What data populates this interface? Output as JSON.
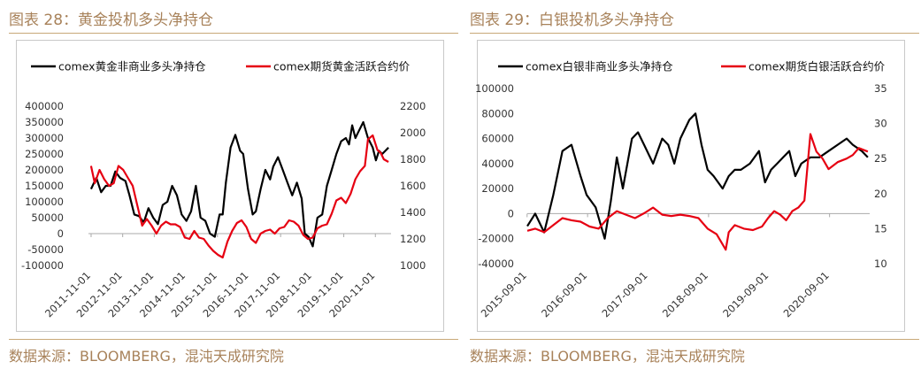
{
  "panels": [
    {
      "title": "图表 28：黄金投机多头净持仓",
      "source": "数据来源：BLOOMBERG，混沌天成研究院"
    },
    {
      "title": "图表 29：白银投机多头净持仓",
      "source": "数据来源：BLOOMBERG，混沌天成研究院"
    }
  ],
  "colors": {
    "series1": "#000000",
    "series2": "#e60012",
    "accent": "#a8825a",
    "rule": "#c8a878"
  },
  "chart_data": [
    {
      "type": "line",
      "title": "",
      "legend": [
        "comex黄金非商业多头净持仓",
        "comex期货黄金活跃合约价"
      ],
      "legend_position": "top",
      "grid": false,
      "xlabel": "",
      "ylabel": "",
      "x_ticks": [
        "2011-11-01",
        "2012-11-01",
        "2013-11-01",
        "2014-11-01",
        "2015-11-01",
        "2016-11-01",
        "2017-11-01",
        "2018-11-01",
        "2019-11-01",
        "2020-11-01"
      ],
      "y_left_ticks": [
        "400000",
        "350000",
        "300000",
        "250000",
        "200000",
        "150000",
        "100000",
        "50000",
        "0",
        "-50000",
        "-100000"
      ],
      "y_right_ticks": [
        "2200",
        "2000",
        "1800",
        "1600",
        "1400",
        "1200",
        "1000"
      ],
      "ylim_left": [
        -100000,
        400000
      ],
      "ylim_right": [
        1000,
        2200
      ],
      "xlim": [
        2011.75,
        2021.33
      ],
      "series": [
        {
          "name": "comex黄金非商业多头净持仓",
          "axis": "left",
          "color": "#000000",
          "x": [
            2011.83,
            2012.0,
            2012.15,
            2012.3,
            2012.45,
            2012.6,
            2012.75,
            2012.92,
            2013.05,
            2013.2,
            2013.35,
            2013.5,
            2013.65,
            2013.8,
            2013.95,
            2014.1,
            2014.25,
            2014.4,
            2014.55,
            2014.7,
            2014.85,
            2015.0,
            2015.15,
            2015.3,
            2015.45,
            2015.6,
            2015.75,
            2015.9,
            2016.0,
            2016.1,
            2016.25,
            2016.4,
            2016.55,
            2016.65,
            2016.8,
            2016.95,
            2017.05,
            2017.2,
            2017.35,
            2017.5,
            2017.6,
            2017.75,
            2017.9,
            2018.05,
            2018.2,
            2018.35,
            2018.5,
            2018.6,
            2018.72,
            2018.85,
            2019.0,
            2019.15,
            2019.3,
            2019.45,
            2019.6,
            2019.75,
            2019.9,
            2020.0,
            2020.1,
            2020.2,
            2020.3,
            2020.45,
            2020.6,
            2020.75,
            2020.85,
            2020.95,
            2021.05,
            2021.15,
            2021.25
          ],
          "y": [
            140000,
            175000,
            130000,
            150000,
            150000,
            195000,
            175000,
            165000,
            120000,
            60000,
            55000,
            35000,
            80000,
            50000,
            30000,
            90000,
            100000,
            150000,
            120000,
            60000,
            40000,
            70000,
            150000,
            50000,
            40000,
            0,
            -10000,
            60000,
            60000,
            160000,
            270000,
            310000,
            260000,
            250000,
            140000,
            60000,
            70000,
            140000,
            200000,
            170000,
            210000,
            240000,
            200000,
            160000,
            120000,
            160000,
            110000,
            0,
            -10000,
            -40000,
            50000,
            60000,
            150000,
            200000,
            250000,
            290000,
            300000,
            280000,
            340000,
            300000,
            320000,
            350000,
            300000,
            270000,
            230000,
            260000,
            250000,
            260000,
            270000
          ]
        },
        {
          "name": "comex期货黄金活跃合约价",
          "axis": "right",
          "color": "#e60012",
          "x": [
            2011.83,
            2011.95,
            2012.1,
            2012.25,
            2012.4,
            2012.55,
            2012.7,
            2012.85,
            2013.0,
            2013.15,
            2013.3,
            2013.45,
            2013.6,
            2013.75,
            2013.9,
            2014.05,
            2014.2,
            2014.35,
            2014.5,
            2014.65,
            2014.8,
            2014.95,
            2015.1,
            2015.25,
            2015.4,
            2015.55,
            2015.7,
            2015.85,
            2016.0,
            2016.15,
            2016.3,
            2016.45,
            2016.6,
            2016.75,
            2016.9,
            2017.05,
            2017.2,
            2017.35,
            2017.5,
            2017.65,
            2017.8,
            2017.95,
            2018.1,
            2018.25,
            2018.4,
            2018.55,
            2018.7,
            2018.85,
            2019.0,
            2019.15,
            2019.3,
            2019.45,
            2019.6,
            2019.75,
            2019.9,
            2020.05,
            2020.2,
            2020.35,
            2020.5,
            2020.6,
            2020.75,
            2020.9,
            2021.0,
            2021.1,
            2021.25
          ],
          "y": [
            1750,
            1620,
            1720,
            1650,
            1600,
            1620,
            1750,
            1720,
            1660,
            1600,
            1450,
            1300,
            1350,
            1300,
            1240,
            1300,
            1330,
            1310,
            1310,
            1290,
            1210,
            1200,
            1260,
            1210,
            1200,
            1150,
            1110,
            1080,
            1060,
            1180,
            1260,
            1320,
            1340,
            1290,
            1200,
            1170,
            1240,
            1260,
            1270,
            1240,
            1280,
            1290,
            1340,
            1330,
            1300,
            1230,
            1200,
            1210,
            1280,
            1300,
            1310,
            1390,
            1490,
            1510,
            1470,
            1540,
            1650,
            1710,
            1750,
            1950,
            1980,
            1870,
            1850,
            1800,
            1780
          ]
        }
      ]
    },
    {
      "type": "line",
      "title": "",
      "legend": [
        "comex白银非商业多头净持仓",
        "comex期货白银活跃合约价"
      ],
      "legend_position": "top",
      "grid": false,
      "xlabel": "",
      "ylabel": "",
      "x_ticks": [
        "2015-09-01",
        "2016-09-01",
        "2017-09-01",
        "2018-09-01",
        "2019-09-01",
        "2020-09-01"
      ],
      "y_left_ticks": [
        "100000",
        "80000",
        "60000",
        "40000",
        "20000",
        "0",
        "-20000",
        "-40000"
      ],
      "y_right_ticks": [
        "35",
        "30",
        "25",
        "20",
        "15",
        "10"
      ],
      "ylim_left": [
        -40000,
        100000
      ],
      "ylim_right": [
        10,
        35
      ],
      "xlim": [
        2015.67,
        2021.33
      ],
      "series": [
        {
          "name": "comex白银非商业多头净持仓",
          "axis": "left",
          "color": "#000000",
          "x": [
            2015.67,
            2015.8,
            2015.95,
            2016.1,
            2016.25,
            2016.4,
            2016.55,
            2016.65,
            2016.8,
            2016.95,
            2017.05,
            2017.15,
            2017.25,
            2017.4,
            2017.5,
            2017.6,
            2017.75,
            2017.9,
            2018.0,
            2018.1,
            2018.2,
            2018.35,
            2018.45,
            2018.55,
            2018.65,
            2018.75,
            2018.9,
            2019.0,
            2019.1,
            2019.2,
            2019.35,
            2019.5,
            2019.6,
            2019.7,
            2019.8,
            2019.9,
            2020.0,
            2020.1,
            2020.2,
            2020.35,
            2020.5,
            2020.65,
            2020.8,
            2020.95,
            2021.05,
            2021.2,
            2021.3
          ],
          "y": [
            -10000,
            0,
            -15000,
            15000,
            50000,
            55000,
            30000,
            15000,
            5000,
            -20000,
            10000,
            45000,
            20000,
            60000,
            65000,
            55000,
            40000,
            60000,
            55000,
            40000,
            60000,
            75000,
            80000,
            55000,
            35000,
            30000,
            20000,
            30000,
            35000,
            35000,
            40000,
            50000,
            25000,
            35000,
            40000,
            45000,
            50000,
            30000,
            40000,
            45000,
            45000,
            50000,
            55000,
            60000,
            55000,
            50000,
            45000
          ]
        },
        {
          "name": "comex期货白银活跃合约价",
          "axis": "right",
          "color": "#e60012",
          "x": [
            2015.67,
            2015.8,
            2015.95,
            2016.1,
            2016.25,
            2016.4,
            2016.55,
            2016.7,
            2016.85,
            2017.0,
            2017.15,
            2017.3,
            2017.45,
            2017.6,
            2017.75,
            2017.9,
            2018.05,
            2018.2,
            2018.35,
            2018.5,
            2018.65,
            2018.8,
            2018.95,
            2019.0,
            2019.1,
            2019.25,
            2019.4,
            2019.55,
            2019.65,
            2019.75,
            2019.85,
            2019.95,
            2020.05,
            2020.15,
            2020.25,
            2020.35,
            2020.45,
            2020.55,
            2020.65,
            2020.8,
            2020.95,
            2021.05,
            2021.15,
            2021.3
          ],
          "y": [
            14.7,
            15.0,
            14.5,
            15.5,
            16.5,
            16.2,
            16.0,
            15.3,
            15.0,
            16.5,
            17.5,
            17.0,
            16.5,
            17.2,
            18.0,
            17.0,
            16.8,
            17.0,
            16.8,
            16.5,
            15.0,
            14.2,
            12.0,
            14.5,
            15.5,
            15.0,
            14.8,
            15.3,
            16.5,
            17.5,
            17.0,
            16.2,
            17.5,
            18.0,
            19.0,
            28.5,
            26.0,
            25.0,
            23.5,
            24.5,
            25.0,
            25.5,
            26.5,
            26.0
          ]
        }
      ]
    }
  ]
}
